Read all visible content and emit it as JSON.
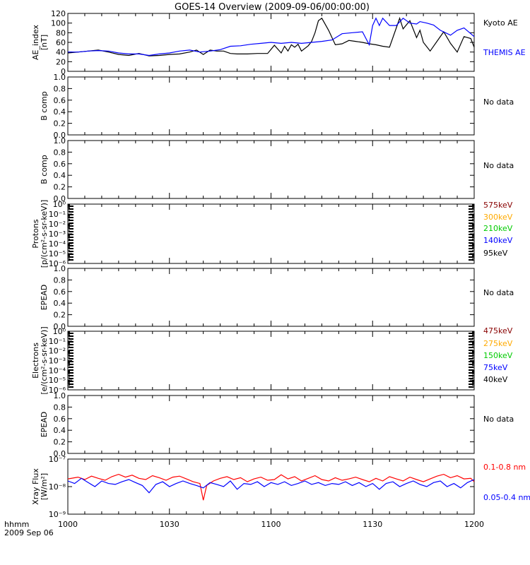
{
  "title": "GOES-14 Overview (2009-09-06/00:00:00)",
  "footer": {
    "time_label": "hhmm",
    "date_label": "2009 Sep 06"
  },
  "x_ticks": [
    {
      "t": 0,
      "label": "1000"
    },
    {
      "t": 30,
      "label": "1030"
    },
    {
      "t": 60,
      "label": "1100"
    },
    {
      "t": 90,
      "label": "1130"
    },
    {
      "t": 120,
      "label": "1200"
    }
  ],
  "panels": [
    {
      "id": "ae",
      "ylabel": [
        "AE_index",
        "[nT]"
      ],
      "yticks": [
        "0",
        "20",
        "40",
        "60",
        "80",
        "100",
        "120"
      ],
      "right_labels": [
        {
          "text": "Kyoto AE",
          "color": "#000000"
        },
        {
          "text": "THEMIS AE",
          "color": "#0000ff"
        }
      ]
    },
    {
      "id": "bcomp1",
      "ylabel": [
        "B comp"
      ],
      "yticks": [
        "0.0",
        "0.2",
        "0.4",
        "0.6",
        "0.8",
        "1.0"
      ],
      "right_labels": [
        {
          "text": "No data",
          "color": "#000000"
        }
      ]
    },
    {
      "id": "bcomp2",
      "ylabel": [
        "B comp"
      ],
      "yticks": [
        "0.0",
        "0.2",
        "0.4",
        "0.6",
        "0.8",
        "1.0"
      ],
      "right_labels": [
        {
          "text": "No data",
          "color": "#000000"
        }
      ]
    },
    {
      "id": "protons",
      "ylabel": [
        "Protons",
        "[p/(cm²-s-sr-keV)]"
      ],
      "yticks": [
        "10⁻⁶",
        "10⁻⁵",
        "10⁻⁴",
        "10⁻³",
        "10⁻²",
        "10⁻¹",
        "10⁰"
      ],
      "right_labels": [
        {
          "text": "575keV",
          "color": "#880000"
        },
        {
          "text": "300keV",
          "color": "#ffaa00"
        },
        {
          "text": "210keV",
          "color": "#00cc00"
        },
        {
          "text": "140keV",
          "color": "#0000ff"
        },
        {
          "text": "95keV",
          "color": "#000000"
        }
      ]
    },
    {
      "id": "epead1",
      "ylabel": [
        "EPEAD"
      ],
      "yticks": [
        "0.0",
        "0.2",
        "0.4",
        "0.6",
        "0.8",
        "1.0"
      ],
      "right_labels": [
        {
          "text": "No data",
          "color": "#000000"
        }
      ]
    },
    {
      "id": "electrons",
      "ylabel": [
        "Electrons",
        "[e/(cm²-s-sr-keV)]"
      ],
      "yticks": [
        "10⁻⁶",
        "10⁻⁵",
        "10⁻⁴",
        "10⁻³",
        "10⁻²",
        "10⁻¹",
        "10⁰"
      ],
      "right_labels": [
        {
          "text": "475keV",
          "color": "#880000"
        },
        {
          "text": "275keV",
          "color": "#ffaa00"
        },
        {
          "text": "150keV",
          "color": "#00cc00"
        },
        {
          "text": "75keV",
          "color": "#0000ff"
        },
        {
          "text": "40keV",
          "color": "#000000"
        }
      ]
    },
    {
      "id": "epead2",
      "ylabel": [
        "EPEAD"
      ],
      "yticks": [
        "0.0",
        "0.2",
        "0.4",
        "0.6",
        "0.8",
        "1.0"
      ],
      "right_labels": [
        {
          "text": "No data",
          "color": "#000000"
        }
      ]
    },
    {
      "id": "xray",
      "ylabel": [
        "Xray Flux",
        "[W/m²]"
      ],
      "yticks": [
        "10⁻⁹",
        "10⁻⁸",
        "10⁻⁷"
      ],
      "right_labels": [
        {
          "text": "0.1-0.8 nm",
          "color": "#ff0000"
        },
        {
          "text": "0.05-0.4 nm",
          "color": "#0000ff"
        }
      ]
    }
  ],
  "chart_data": [
    {
      "type": "line",
      "panel": "ae",
      "ylabel": "AE_index [nT]",
      "ylim": [
        0,
        120
      ],
      "xlim": [
        0,
        120
      ],
      "x_unit": "minutes after 10:00 UT",
      "series": [
        {
          "name": "Kyoto AE",
          "color": "#000000",
          "x": [
            0,
            3,
            6,
            9,
            12,
            15,
            18,
            21,
            24,
            27,
            30,
            33,
            36,
            38,
            40,
            42,
            44,
            46,
            48,
            50,
            53,
            56,
            59,
            61,
            63,
            64,
            65,
            66,
            67,
            68,
            69,
            71,
            72,
            73,
            74,
            75,
            77,
            79,
            81,
            83,
            85,
            87,
            89,
            91,
            93,
            95,
            97,
            98,
            99,
            101,
            103,
            104,
            105,
            107,
            109,
            111,
            113,
            115,
            117,
            119,
            120
          ],
          "y": [
            38,
            40,
            42,
            44,
            40,
            35,
            33,
            37,
            32,
            33,
            35,
            36,
            40,
            44,
            35,
            44,
            42,
            42,
            37,
            36,
            36,
            37,
            37,
            54,
            38,
            52,
            42,
            55,
            50,
            56,
            42,
            53,
            62,
            80,
            105,
            110,
            85,
            55,
            57,
            64,
            62,
            60,
            57,
            55,
            52,
            50,
            90,
            110,
            88,
            105,
            70,
            85,
            60,
            42,
            62,
            82,
            58,
            40,
            72,
            68,
            50
          ]
        },
        {
          "name": "THEMIS AE",
          "color": "#0000ff",
          "x": [
            0,
            3,
            6,
            9,
            12,
            15,
            18,
            21,
            24,
            27,
            30,
            33,
            36,
            39,
            42,
            45,
            48,
            51,
            54,
            57,
            60,
            63,
            66,
            69,
            72,
            75,
            78,
            81,
            84,
            87,
            89,
            90,
            91,
            92,
            93,
            95,
            97,
            99,
            101,
            103,
            104,
            106,
            108,
            110,
            113,
            115,
            117,
            119,
            120
          ],
          "y": [
            40,
            40,
            42,
            43,
            42,
            38,
            36,
            36,
            33,
            36,
            38,
            42,
            44,
            40,
            42,
            45,
            52,
            53,
            56,
            58,
            60,
            58,
            60,
            58,
            60,
            62,
            65,
            78,
            80,
            82,
            55,
            95,
            110,
            95,
            110,
            95,
            95,
            110,
            100,
            98,
            103,
            100,
            96,
            85,
            75,
            85,
            90,
            78,
            72
          ]
        }
      ]
    },
    {
      "type": "line",
      "panel": "xray",
      "ylabel": "Xray Flux [W/m²]",
      "yscale": "log",
      "ylim": [
        1e-09,
        1e-07
      ],
      "xlim": [
        0,
        120
      ],
      "x_unit": "minutes after 10:00 UT",
      "series": [
        {
          "name": "0.1-0.8 nm",
          "color": "#ff0000",
          "x": [
            0,
            3,
            5,
            7,
            9,
            11,
            13,
            15,
            17,
            19,
            21,
            23,
            25,
            27,
            29,
            31,
            33,
            35,
            37,
            39,
            40,
            41,
            43,
            45,
            47,
            49,
            51,
            53,
            55,
            57,
            59,
            61,
            63,
            65,
            67,
            69,
            71,
            73,
            75,
            77,
            79,
            81,
            83,
            85,
            87,
            89,
            91,
            93,
            95,
            97,
            99,
            101,
            103,
            105,
            107,
            109,
            111,
            113,
            115,
            117,
            119,
            120
          ],
          "y": [
            1.9e-08,
            2.2e-08,
            1.8e-08,
            2.4e-08,
            2e-08,
            1.7e-08,
            2.3e-08,
            2.8e-08,
            2.2e-08,
            2.6e-08,
            2e-08,
            1.8e-08,
            2.5e-08,
            2.1e-08,
            1.7e-08,
            2.2e-08,
            2.4e-08,
            1.9e-08,
            1.5e-08,
            1.3e-08,
            3.2e-09,
            1.1e-08,
            1.6e-08,
            2e-08,
            2.3e-08,
            1.8e-08,
            2.1e-08,
            1.5e-08,
            1.9e-08,
            2.2e-08,
            1.7e-08,
            1.8e-08,
            2.7e-08,
            1.9e-08,
            2.3e-08,
            1.6e-08,
            2e-08,
            2.5e-08,
            1.8e-08,
            1.6e-08,
            2.1e-08,
            1.7e-08,
            1.9e-08,
            2.2e-08,
            1.8e-08,
            1.5e-08,
            2e-08,
            1.6e-08,
            2.3e-08,
            1.9e-08,
            1.6e-08,
            2.2e-08,
            1.8e-08,
            1.5e-08,
            1.9e-08,
            2.4e-08,
            2.8e-08,
            2.1e-08,
            2.5e-08,
            1.9e-08,
            2e-08,
            1.5e-08
          ]
        },
        {
          "name": "0.05-0.4 nm",
          "color": "#0000ff",
          "x": [
            0,
            2,
            4,
            6,
            8,
            10,
            12,
            14,
            16,
            18,
            20,
            22,
            24,
            26,
            28,
            30,
            32,
            34,
            36,
            38,
            40,
            42,
            44,
            46,
            48,
            50,
            52,
            54,
            56,
            58,
            60,
            62,
            64,
            66,
            68,
            70,
            72,
            74,
            76,
            78,
            80,
            82,
            84,
            86,
            88,
            90,
            92,
            94,
            96,
            98,
            100,
            102,
            104,
            106,
            108,
            110,
            112,
            114,
            116,
            118,
            120
          ],
          "y": [
            1.6e-08,
            1.3e-08,
            2e-08,
            1.4e-08,
            1e-08,
            1.6e-08,
            1.3e-08,
            1.2e-08,
            1.5e-08,
            1.8e-08,
            1.4e-08,
            1.1e-08,
            6e-09,
            1.2e-08,
            1.5e-08,
            1e-08,
            1.3e-08,
            1.6e-08,
            1.3e-08,
            1.1e-08,
            9e-09,
            1.4e-08,
            1.2e-08,
            1e-08,
            1.6e-08,
            8e-09,
            1.3e-08,
            1.2e-08,
            1.5e-08,
            1e-08,
            1.4e-08,
            1.2e-08,
            1.5e-08,
            1.1e-08,
            1.3e-08,
            1.6e-08,
            1.2e-08,
            1.4e-08,
            1.1e-08,
            1.3e-08,
            1.2e-08,
            1.5e-08,
            1.1e-08,
            1.4e-08,
            1e-08,
            1.3e-08,
            8e-09,
            1.3e-08,
            1.5e-08,
            1e-08,
            1.3e-08,
            1.6e-08,
            1.2e-08,
            1e-08,
            1.4e-08,
            1.6e-08,
            1e-08,
            1.3e-08,
            9e-09,
            1.4e-08,
            1.8e-08
          ]
        }
      ]
    }
  ]
}
